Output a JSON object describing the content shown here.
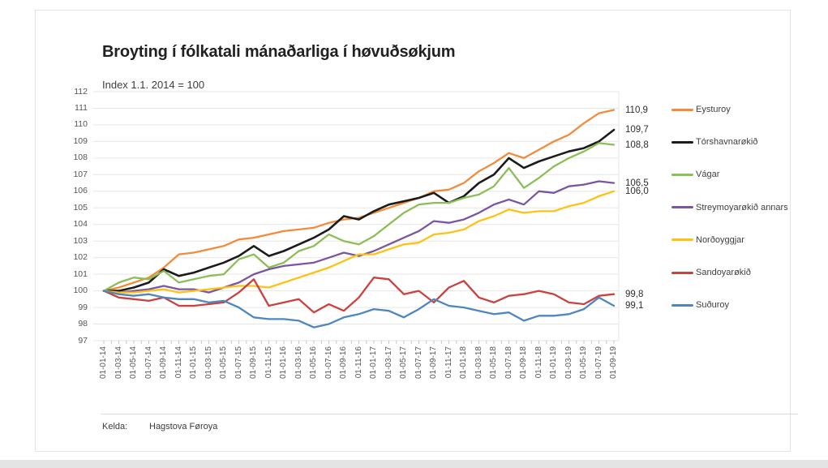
{
  "source": {
    "label": "Kelda:",
    "value": "Hagstova Føroya"
  },
  "chart_data": {
    "type": "line",
    "title": "Broyting í fólkatali mánaðarliga í høvuðsøkjum",
    "subtitle": "Index 1.1. 2014 = 100",
    "xlabel": "",
    "ylabel": "",
    "ylim": [
      97,
      112
    ],
    "y_ticks": [
      97,
      98,
      99,
      100,
      101,
      102,
      103,
      104,
      105,
      106,
      107,
      108,
      109,
      110,
      111,
      112
    ],
    "grid": true,
    "legend_position": "right",
    "x_label_rotation": -90,
    "decimal_separator": ",",
    "x_labels": [
      "01-01-14",
      "01-03-14",
      "01-05-14",
      "01-07-14",
      "01-09-14",
      "01-11-14",
      "01-01-15",
      "01-03-15",
      "01-05-15",
      "01-07-15",
      "01-09-15",
      "01-11-15",
      "01-01-16",
      "01-03-16",
      "01-05-16",
      "01-07-16",
      "01-09-16",
      "01-11-16",
      "01-01-17",
      "01-03-17",
      "01-05-17",
      "01-07-17",
      "01-09-17",
      "01-11-17",
      "01-01-18",
      "01-03-18",
      "01-05-18",
      "01-07-18",
      "01-09-18",
      "01-11-18",
      "01-01-19",
      "01-03-19",
      "01-05-19",
      "01-07-19",
      "01-09-19"
    ],
    "series": [
      {
        "name": "Eysturoy",
        "color": "#F28C3B",
        "end_label": "110,9",
        "values": [
          100.0,
          100.2,
          100.5,
          100.8,
          101.4,
          102.2,
          102.3,
          102.5,
          102.7,
          103.1,
          103.2,
          103.4,
          103.6,
          103.7,
          103.8,
          104.1,
          104.3,
          104.4,
          104.7,
          105.0,
          105.3,
          105.6,
          106.0,
          106.1,
          106.5,
          107.2,
          107.7,
          108.3,
          108.0,
          108.5,
          109.0,
          109.4,
          110.1,
          110.7,
          110.9
        ]
      },
      {
        "name": "Tórshavnarøkið",
        "color": "#1b1b1b",
        "end_label": "109,7",
        "values": [
          100.0,
          100.0,
          100.2,
          100.5,
          101.3,
          100.9,
          101.1,
          101.4,
          101.7,
          102.1,
          102.7,
          102.1,
          102.4,
          102.8,
          103.2,
          103.7,
          104.5,
          104.3,
          104.8,
          105.2,
          105.4,
          105.6,
          105.9,
          105.3,
          105.7,
          106.5,
          107.0,
          108.0,
          107.4,
          107.8,
          108.1,
          108.4,
          108.6,
          109.0,
          109.7
        ]
      },
      {
        "name": "Vágar",
        "color": "#8CBE57",
        "end_label": "108,8",
        "values": [
          100.0,
          100.5,
          100.8,
          100.7,
          101.2,
          100.5,
          100.7,
          100.9,
          101.0,
          101.9,
          102.2,
          101.4,
          101.7,
          102.4,
          102.7,
          103.4,
          103.0,
          102.8,
          103.3,
          104.0,
          104.7,
          105.2,
          105.3,
          105.3,
          105.6,
          105.8,
          106.3,
          107.4,
          106.2,
          106.8,
          107.5,
          108.0,
          108.4,
          108.9,
          108.8
        ]
      },
      {
        "name": "Streymoyarøkið annars",
        "color": "#7B56A0",
        "end_label": "106,5",
        "values": [
          100.0,
          99.9,
          100.0,
          100.1,
          100.3,
          100.1,
          100.1,
          99.9,
          100.2,
          100.5,
          101.0,
          101.3,
          101.5,
          101.6,
          101.7,
          102.0,
          102.3,
          102.1,
          102.4,
          102.8,
          103.2,
          103.6,
          104.2,
          104.1,
          104.3,
          104.7,
          105.2,
          105.5,
          105.2,
          106.0,
          105.9,
          106.3,
          106.4,
          106.6,
          106.5
        ]
      },
      {
        "name": "Norðoyggjar",
        "color": "#FEC212",
        "end_label": "106,0",
        "values": [
          100.0,
          99.9,
          99.9,
          100.0,
          100.1,
          99.9,
          100.0,
          100.1,
          100.2,
          100.3,
          100.3,
          100.2,
          100.5,
          100.8,
          101.1,
          101.4,
          101.8,
          102.2,
          102.2,
          102.5,
          102.8,
          102.9,
          103.4,
          103.5,
          103.7,
          104.2,
          104.5,
          104.9,
          104.7,
          104.8,
          104.8,
          105.1,
          105.3,
          105.7,
          106.0
        ]
      },
      {
        "name": "Sandoyarøkið",
        "color": "#C9423F",
        "end_label": "99,8",
        "values": [
          100.0,
          99.6,
          99.5,
          99.4,
          99.6,
          99.1,
          99.1,
          99.2,
          99.3,
          99.9,
          100.7,
          99.1,
          99.3,
          99.5,
          98.7,
          99.2,
          98.8,
          99.6,
          100.8,
          100.7,
          99.8,
          100.0,
          99.3,
          100.2,
          100.6,
          99.6,
          99.3,
          99.7,
          99.8,
          100.0,
          99.8,
          99.3,
          99.2,
          99.7,
          99.8
        ]
      },
      {
        "name": "Suðuroy",
        "color": "#4E86C0",
        "end_label": "99,1",
        "values": [
          100.0,
          99.8,
          99.7,
          99.8,
          99.6,
          99.5,
          99.5,
          99.3,
          99.4,
          99.0,
          98.4,
          98.3,
          98.3,
          98.2,
          97.8,
          98.0,
          98.4,
          98.6,
          98.9,
          98.8,
          98.4,
          98.9,
          99.5,
          99.1,
          99.0,
          98.8,
          98.6,
          98.7,
          98.2,
          98.5,
          98.5,
          98.6,
          98.9,
          99.6,
          99.1
        ]
      }
    ]
  }
}
